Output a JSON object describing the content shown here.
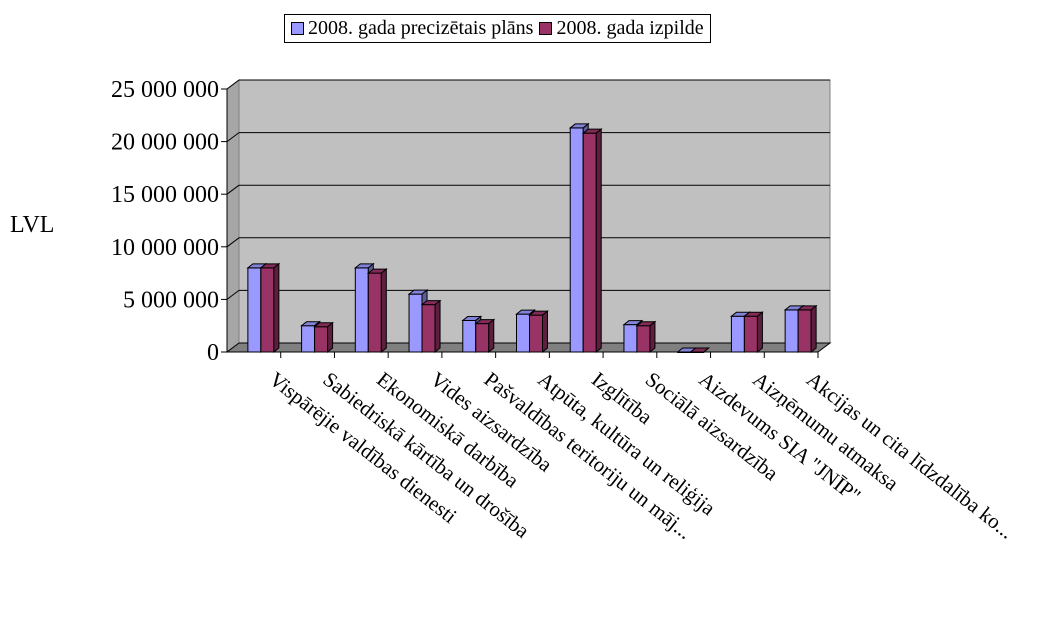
{
  "chart_data": {
    "type": "bar",
    "title": "",
    "ylabel": "LVL",
    "xlabel": "",
    "ylim": [
      0,
      25000000
    ],
    "yticks": [
      0,
      5000000,
      10000000,
      15000000,
      20000000,
      25000000
    ],
    "ytick_labels": [
      "0",
      "5 000 000",
      "10 000 000",
      "15 000 000",
      "20 000 000",
      "25 000 000"
    ],
    "grid": true,
    "legend_position": "top",
    "categories": [
      "Vispārējie valdības dienesti",
      "Sabiedriskā kārtība un drošība",
      "Ekonomiskā darbība",
      "Vides aizsardzība",
      "Pašvaldības teritoriju un māj...",
      "Atpūta, kultūra un reliģija",
      "Izglītība",
      "Sociālā aizsardzība",
      "Aizdevums SIA \"JNĪP\"",
      "Aizņēmumu atmaksa",
      "Akcijas un cita līdzdalība ko..."
    ],
    "series": [
      {
        "name": "2008. gada precizētais plāns",
        "color": "#9999ff",
        "values": [
          8000000,
          2500000,
          8000000,
          5500000,
          3000000,
          3600000,
          21300000,
          2600000,
          0,
          3400000,
          4000000
        ]
      },
      {
        "name": "2008. gada izpilde",
        "color": "#993366",
        "values": [
          8000000,
          2400000,
          7500000,
          4500000,
          2700000,
          3500000,
          20800000,
          2500000,
          0,
          3400000,
          4000000
        ]
      }
    ]
  }
}
